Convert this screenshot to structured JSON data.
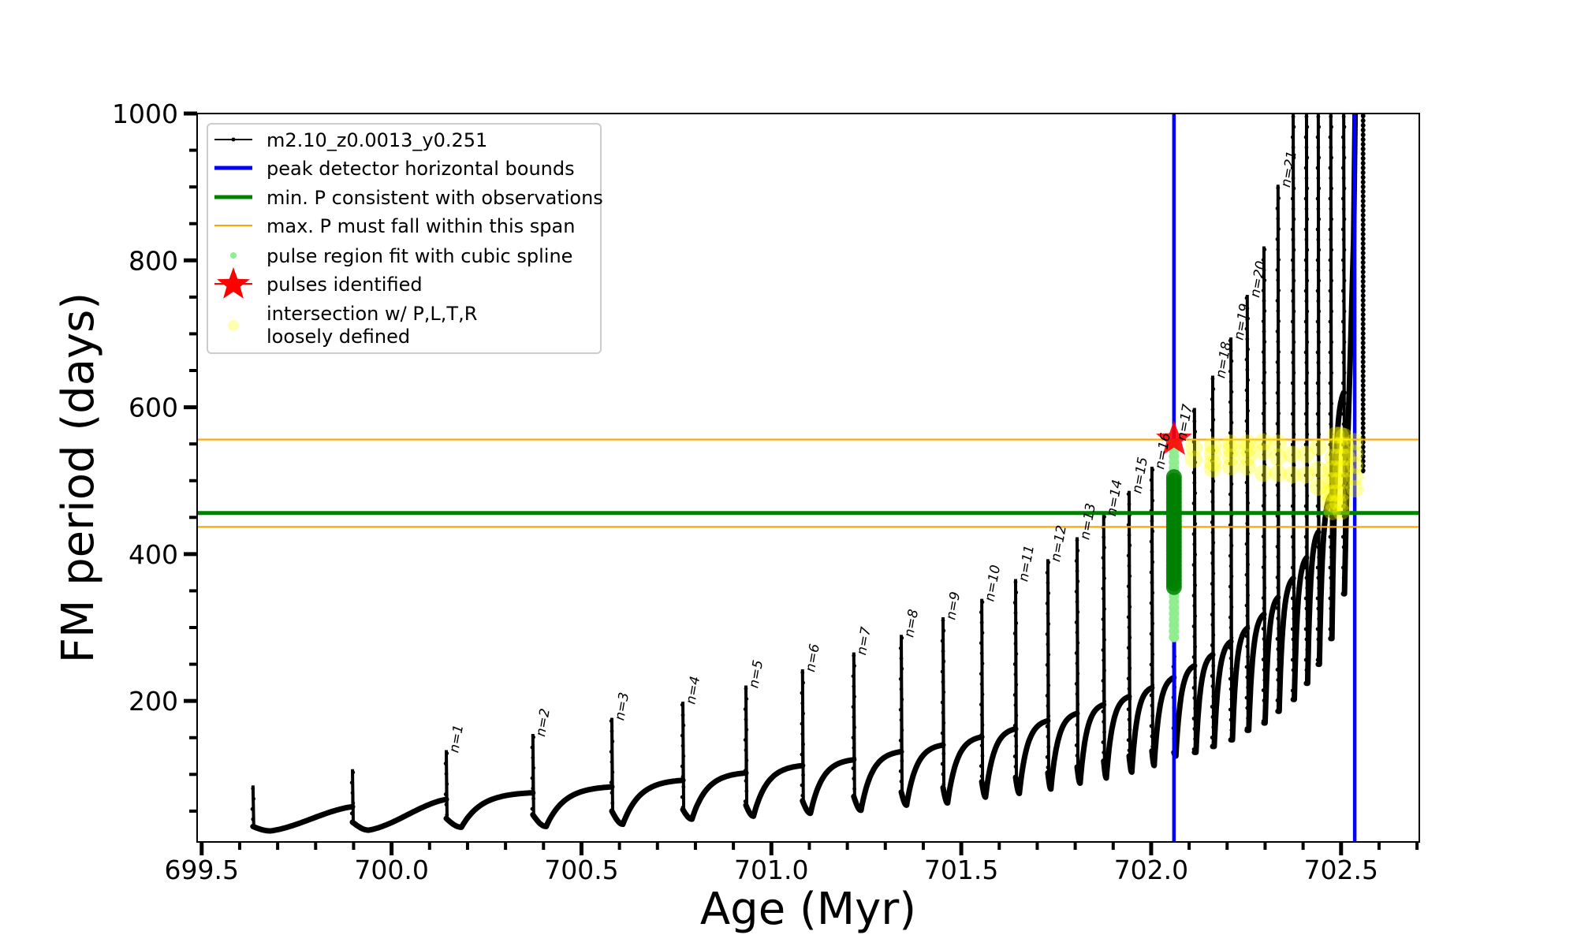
{
  "chart_data": {
    "type": "line",
    "title": "",
    "xlabel": "Age (Myr)",
    "ylabel": "FM period (days)",
    "xlim": [
      699.488,
      702.706
    ],
    "ylim": [
      8,
      1000
    ],
    "grid": false,
    "x_ticks": {
      "major": [
        699.5,
        700.0,
        700.5,
        701.0,
        701.5,
        702.0,
        702.5
      ],
      "labels": [
        "699.5",
        "700.0",
        "700.5",
        "701.0",
        "701.5",
        "702.0",
        "702.5"
      ],
      "minor_step": 0.1
    },
    "y_ticks": {
      "major": [
        200,
        400,
        600,
        800,
        1000
      ],
      "labels": [
        "200",
        "400",
        "600",
        "800",
        "1000"
      ],
      "minor_step": 50
    },
    "legend": {
      "location": "upper left",
      "entries": [
        {
          "label": "m2.10_z0.0013_y0.251",
          "kind": "series",
          "color": "#000000"
        },
        {
          "label": "peak detector horizontal bounds",
          "kind": "thick-line",
          "color": "#0000ff"
        },
        {
          "label": "min. P consistent with observations",
          "kind": "thick-line",
          "color": "#008000"
        },
        {
          "label": "max. P must fall within this span",
          "kind": "thin-line",
          "color": "#ffa500"
        },
        {
          "label": "pulse region fit with cubic spline",
          "kind": "dot",
          "color": "#90ee90"
        },
        {
          "label": "pulses identified",
          "kind": "star",
          "color": "#ff0000"
        },
        {
          "label_lines": [
            "intersection w/ P,L,T,R",
            "loosely defined"
          ],
          "kind": "circle",
          "color": "#ffff99"
        }
      ]
    },
    "series": [
      {
        "name": "m2.10_z0.0013_y0.251",
        "color": "#000000",
        "start": {
          "age": 699.635,
          "top": 85,
          "bottom": 29,
          "trough_age": 699.681,
          "trough": 23
        },
        "pulses": [
          {
            "age": 699.897,
            "pre": 56,
            "top": 107,
            "bottom": 35,
            "trough_age": 699.94,
            "trough": 24
          },
          {
            "age": 700.144,
            "pre": 66,
            "top": 133,
            "bottom": 40,
            "trough_age": 700.184,
            "trough": 28
          },
          {
            "age": 700.372,
            "pre": 75,
            "top": 155,
            "bottom": 45,
            "trough_age": 700.407,
            "trough": 29
          },
          {
            "age": 700.58,
            "pre": 83,
            "top": 177,
            "bottom": 50,
            "trough_age": 700.609,
            "trough": 32
          },
          {
            "age": 700.767,
            "pre": 92,
            "top": 199,
            "bottom": 52,
            "trough_age": 700.791,
            "trough": 39
          },
          {
            "age": 700.933,
            "pre": 102,
            "top": 221,
            "bottom": 58,
            "trough_age": 700.953,
            "trough": 43
          },
          {
            "age": 701.082,
            "pre": 112,
            "top": 243,
            "bottom": 64,
            "trough_age": 701.103,
            "trough": 47
          },
          {
            "age": 701.217,
            "pre": 120,
            "top": 266,
            "bottom": 70,
            "trough_age": 701.236,
            "trough": 51
          },
          {
            "age": 701.342,
            "pre": 131,
            "top": 290,
            "bottom": 76,
            "trough_age": 701.356,
            "trough": 58
          },
          {
            "age": 701.452,
            "pre": 140,
            "top": 314,
            "bottom": 82,
            "trough_age": 701.464,
            "trough": 61
          },
          {
            "age": 701.554,
            "pre": 151,
            "top": 339,
            "bottom": 90,
            "trough_age": 701.564,
            "trough": 69
          },
          {
            "age": 701.643,
            "pre": 162,
            "top": 366,
            "bottom": 96,
            "trough_age": 701.653,
            "trough": 74
          },
          {
            "age": 701.728,
            "pre": 173,
            "top": 393,
            "bottom": 102,
            "trough_age": 701.736,
            "trough": 80
          },
          {
            "age": 701.805,
            "pre": 183,
            "top": 423,
            "bottom": 110,
            "trough_age": 701.813,
            "trough": 88
          },
          {
            "age": 701.875,
            "pre": 195,
            "top": 455,
            "bottom": 118,
            "trough_age": 701.882,
            "trough": 95
          },
          {
            "age": 701.942,
            "pre": 206,
            "top": 486,
            "bottom": 125,
            "trough_age": 701.949,
            "trough": 103
          },
          {
            "age": 702.002,
            "pre": 218,
            "top": 519,
            "bottom": 132,
            "trough_age": 702.008,
            "trough": 112
          },
          {
            "age": 702.06,
            "pre": 232,
            "top": 558,
            "bottom": 130,
            "trough_age": 702.065,
            "trough": 125
          },
          {
            "age": 702.114,
            "pre": 248,
            "top": 599,
            "bottom": 130,
            "trough_age": 702.118,
            "trough": 130
          },
          {
            "age": 702.162,
            "pre": 263,
            "top": 643,
            "bottom": 138,
            "trough_age": 702.166,
            "trough": 138
          },
          {
            "age": 702.21,
            "pre": 281,
            "top": 695,
            "bottom": 147,
            "trough_age": 702.214,
            "trough": 147
          },
          {
            "age": 702.253,
            "pre": 299,
            "top": 753,
            "bottom": 160,
            "trough_age": 702.257,
            "trough": 160
          },
          {
            "age": 702.297,
            "pre": 318,
            "top": 819,
            "bottom": 170,
            "trough_age": 702.3,
            "trough": 170
          },
          {
            "age": 702.334,
            "pre": 341,
            "top": 903,
            "bottom": 186,
            "trough_age": 702.337,
            "trough": 186
          },
          {
            "age": 702.374,
            "pre": 367,
            "top": 1000,
            "bottom": 202,
            "trough_age": 702.377,
            "trough": 202
          },
          {
            "age": 702.409,
            "pre": 395,
            "top": 1000,
            "bottom": 224,
            "trough_age": 702.412,
            "trough": 224
          },
          {
            "age": 702.44,
            "pre": 430,
            "top": 1000,
            "bottom": 250,
            "trough_age": 702.443,
            "trough": 250
          },
          {
            "age": 702.473,
            "pre": 480,
            "top": 1000,
            "bottom": 285,
            "trough_age": 702.476,
            "trough": 285
          },
          {
            "age": 702.507,
            "pre": 620,
            "top": 1000,
            "bottom": 346,
            "trough_age": 702.509,
            "trough": 346
          }
        ],
        "tail": [
          [
            702.512,
            420
          ],
          [
            702.518,
            560
          ],
          [
            702.526,
            700
          ],
          [
            702.533,
            830
          ],
          [
            702.537,
            1000
          ]
        ],
        "tail_branch": [
          [
            702.558,
            1000
          ],
          [
            702.558,
            510
          ]
        ]
      }
    ],
    "vlines": [
      {
        "label": "peak detector horizontal bounds",
        "x": 702.06,
        "color": "#0000ff"
      },
      {
        "label": "peak detector horizontal bounds",
        "x": 702.536,
        "color": "#0000ff"
      }
    ],
    "hlines": [
      {
        "label": "min. P consistent with observations",
        "y": 456,
        "color": "#008000",
        "style": "thick"
      },
      {
        "label": "max. P must fall within this span",
        "y": 437,
        "color": "#ffa500",
        "style": "thin"
      },
      {
        "label": "max. P must fall within this span",
        "y": 556,
        "color": "#ffa500",
        "style": "thin"
      }
    ],
    "pulse_region": {
      "age": 702.06,
      "color_light": "#90ee90",
      "color_dark": "#008000",
      "light_periods": [
        287,
        295,
        303,
        311,
        319,
        327,
        335,
        343,
        351,
        509,
        517,
        525,
        533,
        541,
        549
      ],
      "dark_periods": [
        355,
        360,
        365,
        370,
        375,
        380,
        385,
        390,
        395,
        400,
        405,
        410,
        415,
        420,
        425,
        430,
        435,
        440,
        445,
        450,
        455,
        460,
        465,
        470,
        475,
        480,
        485,
        490,
        495,
        500,
        505
      ]
    },
    "pulses_identified": [
      {
        "age": 702.06,
        "period": 556,
        "color": "#ff0000"
      }
    ],
    "intersection": {
      "color": "#ffff00",
      "points": [
        [
          702.112,
          545
        ],
        [
          702.112,
          529
        ],
        [
          702.162,
          548
        ],
        [
          702.162,
          537
        ],
        [
          702.162,
          524
        ],
        [
          702.162,
          516
        ],
        [
          702.21,
          551
        ],
        [
          702.21,
          543
        ],
        [
          702.21,
          532
        ],
        [
          702.21,
          519
        ],
        [
          702.253,
          551
        ],
        [
          702.253,
          543
        ],
        [
          702.253,
          532
        ],
        [
          702.253,
          519
        ],
        [
          702.295,
          553
        ],
        [
          702.295,
          539
        ],
        [
          702.295,
          510
        ],
        [
          702.334,
          551
        ],
        [
          702.334,
          532
        ],
        [
          702.334,
          510
        ],
        [
          702.371,
          536
        ],
        [
          702.371,
          508
        ],
        [
          702.407,
          536
        ],
        [
          702.407,
          508
        ],
        [
          702.44,
          546
        ],
        [
          702.44,
          515
        ],
        [
          702.44,
          491
        ],
        [
          702.486,
          562
        ],
        [
          702.498,
          562
        ],
        [
          702.508,
          560
        ],
        [
          702.486,
          548
        ],
        [
          702.498,
          548
        ],
        [
          702.511,
          548
        ],
        [
          702.48,
          532
        ],
        [
          702.492,
          532
        ],
        [
          702.504,
          532
        ],
        [
          702.515,
          532
        ],
        [
          702.476,
          516
        ],
        [
          702.488,
          516
        ],
        [
          702.5,
          516
        ],
        [
          702.512,
          516
        ],
        [
          702.47,
          500
        ],
        [
          702.482,
          500
        ],
        [
          702.494,
          500
        ],
        [
          702.506,
          500
        ],
        [
          702.466,
          483
        ],
        [
          702.478,
          483
        ],
        [
          702.49,
          483
        ],
        [
          702.502,
          483
        ],
        [
          702.468,
          470
        ],
        [
          702.48,
          468
        ],
        [
          702.492,
          470
        ],
        [
          702.504,
          470
        ],
        [
          702.477,
          458
        ],
        [
          702.5,
          458
        ],
        [
          702.536,
          553
        ],
        [
          702.536,
          537
        ],
        [
          702.536,
          521
        ],
        [
          702.536,
          505
        ],
        [
          702.536,
          489
        ]
      ]
    },
    "annotations": [
      {
        "text": "n=1",
        "age": 700.144,
        "period": 133
      },
      {
        "text": "n=2",
        "age": 700.372,
        "period": 155
      },
      {
        "text": "n=3",
        "age": 700.58,
        "period": 177
      },
      {
        "text": "n=4",
        "age": 700.767,
        "period": 199
      },
      {
        "text": "n=5",
        "age": 700.933,
        "period": 221
      },
      {
        "text": "n=6",
        "age": 701.082,
        "period": 243
      },
      {
        "text": "n=7",
        "age": 701.217,
        "period": 266
      },
      {
        "text": "n=8",
        "age": 701.342,
        "period": 290
      },
      {
        "text": "n=9",
        "age": 701.452,
        "period": 314
      },
      {
        "text": "n=10",
        "age": 701.554,
        "period": 339
      },
      {
        "text": "n=11",
        "age": 701.643,
        "period": 366
      },
      {
        "text": "n=12",
        "age": 701.728,
        "period": 393
      },
      {
        "text": "n=13",
        "age": 701.805,
        "period": 423
      },
      {
        "text": "n=14",
        "age": 701.875,
        "period": 455
      },
      {
        "text": "n=15",
        "age": 701.942,
        "period": 486
      },
      {
        "text": "n=16",
        "age": 702.002,
        "period": 519
      },
      {
        "text": "n=17",
        "age": 702.06,
        "period": 558
      },
      {
        "text": "n=18",
        "age": 702.162,
        "period": 643
      },
      {
        "text": "n=19",
        "age": 702.21,
        "period": 695
      },
      {
        "text": "n=20",
        "age": 702.253,
        "period": 753
      },
      {
        "text": "n=21",
        "age": 702.334,
        "period": 903
      }
    ]
  }
}
